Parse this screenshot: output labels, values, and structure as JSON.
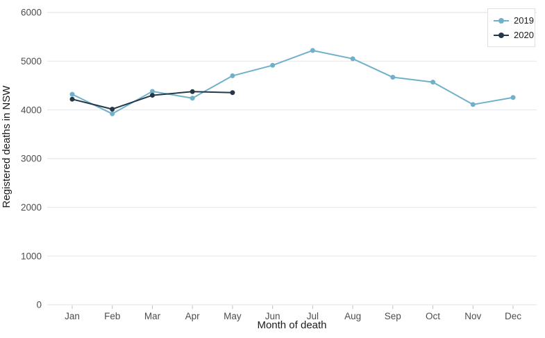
{
  "chart_data": {
    "type": "line",
    "title": "",
    "xlabel": "Month of death",
    "ylabel": "Registered deaths in NSW",
    "categories": [
      "Jan",
      "Feb",
      "Mar",
      "Apr",
      "May",
      "Jun",
      "Jul",
      "Aug",
      "Sep",
      "Oct",
      "Nov",
      "Dec"
    ],
    "series": [
      {
        "name": "2019",
        "color": "#6fb1c9",
        "values": [
          4320,
          3920,
          4380,
          4240,
          4700,
          4915,
          5220,
          5050,
          4670,
          4570,
          4110,
          4255
        ]
      },
      {
        "name": "2020",
        "color": "#24384a",
        "values": [
          4220,
          4015,
          4300,
          4375,
          4355
        ]
      }
    ],
    "ylim": [
      0,
      6000
    ],
    "yticks": [
      0,
      1000,
      2000,
      3000,
      4000,
      5000,
      6000
    ],
    "grid": "horizontal-only",
    "legend_position": "top-right"
  },
  "colors": {
    "series_2019": "#6fb1c9",
    "series_2020": "#24384a",
    "gridline": "#e8e8e8",
    "tick_mark": "#c2c2c2",
    "tick_text": "#4d4d4d",
    "axis_title_text": "#1a1a1a",
    "legend_border": "#e0e0e0",
    "background": "#ffffff"
  }
}
